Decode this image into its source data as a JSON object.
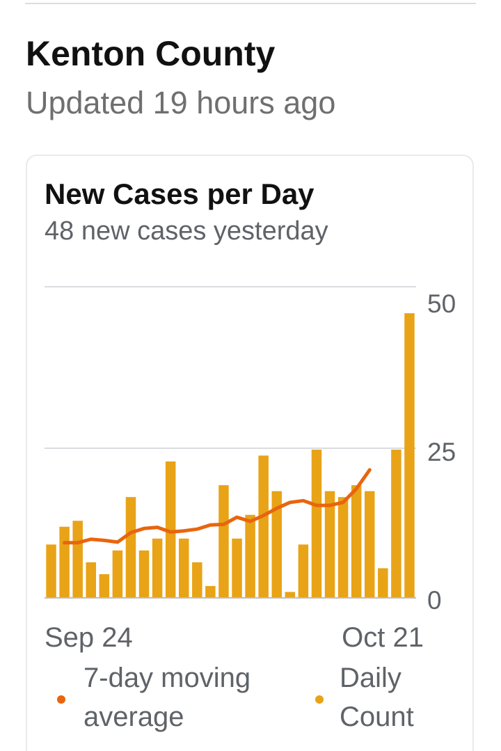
{
  "header": {
    "county_name": "Kenton County",
    "updated_text": "Updated 19 hours ago"
  },
  "card": {
    "title": "New Cases per Day",
    "subtitle": "48 new cases yesterday"
  },
  "colors": {
    "bar": "#E8A317",
    "moving_average": "#E8650E",
    "gridline": "#dadce0",
    "axis_text": "#5f6368"
  },
  "legend": {
    "moving_average_label": "7-day moving average",
    "daily_count_label": "Daily Count"
  },
  "chart_data": {
    "type": "bar",
    "title": "New Cases per Day",
    "x_tick_labels": [
      "Sep 24",
      "Oct 21"
    ],
    "y_tick_labels": [
      "0",
      "25",
      "50"
    ],
    "ylim": [
      0,
      50
    ],
    "grid": true,
    "legend_placement": "bottom",
    "categories": [
      "Sep 24",
      "Sep 25",
      "Sep 26",
      "Sep 27",
      "Sep 28",
      "Sep 29",
      "Sep 30",
      "Oct 1",
      "Oct 2",
      "Oct 3",
      "Oct 4",
      "Oct 5",
      "Oct 6",
      "Oct 7",
      "Oct 8",
      "Oct 9",
      "Oct 10",
      "Oct 11",
      "Oct 12",
      "Oct 13",
      "Oct 14",
      "Oct 15",
      "Oct 16",
      "Oct 17",
      "Oct 18",
      "Oct 19",
      "Oct 20",
      "Oct 21"
    ],
    "series": [
      {
        "name": "Daily Count",
        "type": "bar",
        "values": [
          9,
          12,
          13,
          6,
          4,
          8,
          17,
          8,
          10,
          23,
          10,
          6,
          2,
          19,
          10,
          14,
          24,
          18,
          1,
          9,
          25,
          18,
          17,
          19,
          18,
          5,
          25,
          48
        ]
      },
      {
        "name": "7-day moving average",
        "type": "line",
        "values": [
          null,
          9.3,
          9.3,
          9.9,
          9.7,
          9.4,
          11,
          11.7,
          11.9,
          11.1,
          11.3,
          11.6,
          12.3,
          12.4,
          13.6,
          12.9,
          13.9,
          15.1,
          16.1,
          16.4,
          15.6,
          15.6,
          16.1,
          18.4,
          21.6,
          null,
          null,
          null
        ]
      }
    ]
  }
}
